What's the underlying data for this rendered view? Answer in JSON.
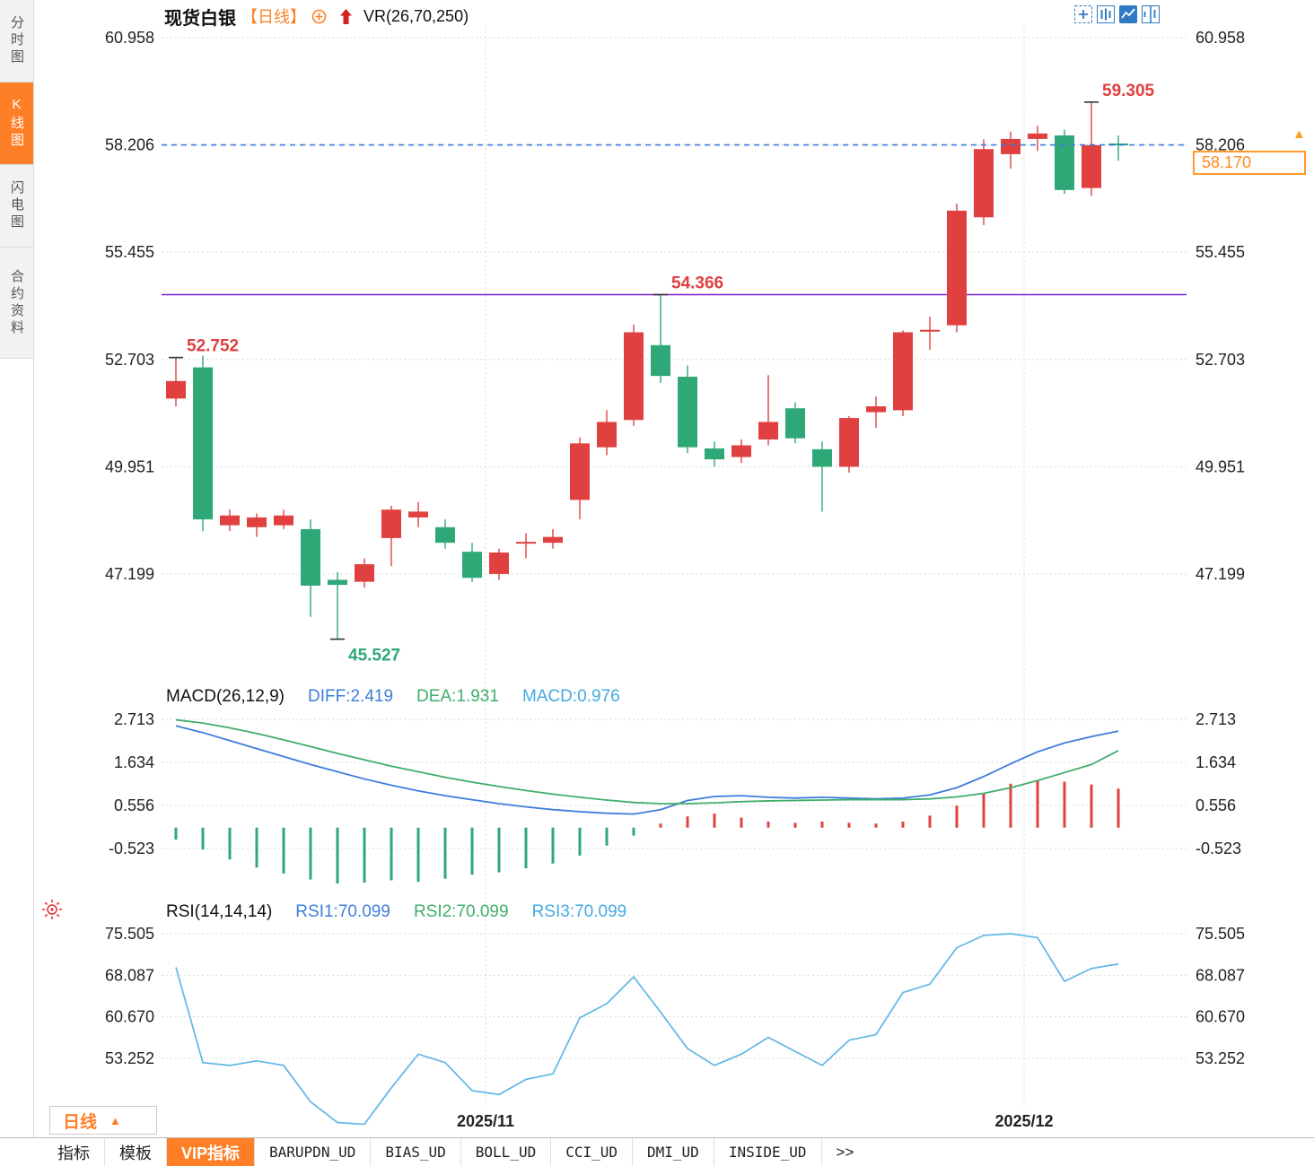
{
  "header": {
    "title": "现货白银",
    "period": "【日线】",
    "vr": "VR(26,70,250)"
  },
  "icons": {
    "add_overlay": "circle-plus-icon",
    "trend": "red-up-arrow-icon",
    "toolbar": [
      "pan-move-icon",
      "kline-view-icon",
      "chart-view-active-icon",
      "split-panes-icon"
    ],
    "settings": "sun-icon",
    "period_caret": "triangle-up-icon",
    "price_marker": "triangle-up-icon"
  },
  "sidebar": {
    "items": [
      {
        "label": "分时图",
        "active": false
      },
      {
        "label": "K线图",
        "active": true
      },
      {
        "label": "闪电图",
        "active": false
      },
      {
        "label": "合约资料",
        "active": false
      }
    ]
  },
  "price_tag": {
    "value": "58.170"
  },
  "macd_header": {
    "name": "MACD(26,12,9)",
    "diff": "DIFF:2.419",
    "dea": "DEA:1.931",
    "macd": "MACD:0.976"
  },
  "rsi_header": {
    "name": "RSI(14,14,14)",
    "rsi1": "RSI1:70.099",
    "rsi2": "RSI2:70.099",
    "rsi3": "RSI3:70.099"
  },
  "bottom": {
    "period_label": "日线"
  },
  "tabs": {
    "items": [
      "指标",
      "模板",
      "VIP指标",
      "BARUPDN_UD",
      "BIAS_UD",
      "BOLL_UD",
      "CCI_UD",
      "DMI_UD",
      "INSIDE_UD",
      ">>"
    ],
    "active": "VIP指标"
  },
  "chart_data": {
    "type": "candlestick",
    "title": "现货白银 日线",
    "x_axis": {
      "labels": [
        "2025/11",
        "2025/12"
      ],
      "label_positions": [
        11.5,
        31.5
      ]
    },
    "colors": {
      "up": "#e04040",
      "down": "#2fa878",
      "diff": "#3d7edb",
      "dea": "#3fae6a",
      "rsi": "#5fb6e5",
      "grid": "#d9d9d9",
      "dashed": "#3d7be0",
      "level": "#7b1fd2",
      "accent_orange": "#ff7f27"
    },
    "panels": [
      {
        "type": "candlestick",
        "y_ticks": [
          60.958,
          58.206,
          55.455,
          52.703,
          49.951,
          47.199
        ],
        "current_price": 58.17,
        "current_price_line": 58.206,
        "levels": [
          {
            "price": 54.366,
            "color": "#7b1fd2",
            "style": "solid"
          }
        ],
        "annotations": [
          {
            "index": 0,
            "price": 52.752,
            "label": "52.752",
            "color": "#e04040",
            "placement": "above"
          },
          {
            "index": 6,
            "price": 45.527,
            "label": "45.527",
            "color": "#2fa878",
            "placement": "below"
          },
          {
            "index": 18,
            "price": 54.366,
            "label": "54.366",
            "color": "#e04040",
            "placement": "above"
          },
          {
            "index": 34,
            "price": 59.305,
            "label": "59.305",
            "color": "#e04040",
            "placement": "above"
          }
        ],
        "candles": [
          [
            51.7,
            52.752,
            51.5,
            52.15
          ],
          [
            52.5,
            52.8,
            48.3,
            48.6
          ],
          [
            48.45,
            48.85,
            48.3,
            48.7
          ],
          [
            48.4,
            48.75,
            48.15,
            48.65
          ],
          [
            48.45,
            48.85,
            48.35,
            48.7
          ],
          [
            48.35,
            48.6,
            46.1,
            46.9
          ],
          [
            47.05,
            47.25,
            45.527,
            46.92
          ],
          [
            47.0,
            47.6,
            46.85,
            47.45
          ],
          [
            48.12,
            48.95,
            47.4,
            48.85
          ],
          [
            48.65,
            49.05,
            48.4,
            48.8
          ],
          [
            48.4,
            48.6,
            47.85,
            48.0
          ],
          [
            47.77,
            48.0,
            47.0,
            47.1
          ],
          [
            47.2,
            47.85,
            47.05,
            47.75
          ],
          [
            47.95,
            48.25,
            47.6,
            48.0
          ],
          [
            48.0,
            48.35,
            47.85,
            48.15
          ],
          [
            49.1,
            50.7,
            48.6,
            50.55
          ],
          [
            50.45,
            51.4,
            50.25,
            51.1
          ],
          [
            51.15,
            53.6,
            51.0,
            53.4
          ],
          [
            53.07,
            54.366,
            52.1,
            52.28
          ],
          [
            52.26,
            52.55,
            50.3,
            50.45
          ],
          [
            50.42,
            50.6,
            49.95,
            50.14
          ],
          [
            50.2,
            50.65,
            50.05,
            50.5
          ],
          [
            50.65,
            52.3,
            50.5,
            51.1
          ],
          [
            51.45,
            51.6,
            50.55,
            50.68
          ],
          [
            50.4,
            50.6,
            48.8,
            49.95
          ],
          [
            49.95,
            51.25,
            49.8,
            51.2
          ],
          [
            51.35,
            51.75,
            50.95,
            51.5
          ],
          [
            51.4,
            53.45,
            51.25,
            53.4
          ],
          [
            53.4,
            53.8,
            52.95,
            53.44
          ],
          [
            53.58,
            56.7,
            53.4,
            56.52
          ],
          [
            56.35,
            58.35,
            56.15,
            58.1
          ],
          [
            57.97,
            58.55,
            57.6,
            58.36
          ],
          [
            58.36,
            58.7,
            58.05,
            58.5
          ],
          [
            58.45,
            58.6,
            56.95,
            57.05
          ],
          [
            57.1,
            59.305,
            56.9,
            58.2
          ],
          [
            58.22,
            58.45,
            57.8,
            58.17
          ]
        ]
      },
      {
        "type": "macd",
        "y_ticks": [
          2.713,
          1.634,
          0.556,
          -0.523
        ],
        "diff": [
          2.55,
          2.38,
          2.18,
          1.98,
          1.78,
          1.58,
          1.4,
          1.22,
          1.06,
          0.92,
          0.8,
          0.7,
          0.6,
          0.52,
          0.45,
          0.4,
          0.36,
          0.34,
          0.45,
          0.68,
          0.78,
          0.8,
          0.76,
          0.74,
          0.76,
          0.74,
          0.72,
          0.74,
          0.82,
          1.0,
          1.28,
          1.6,
          1.9,
          2.12,
          2.28,
          2.419
        ],
        "dea": [
          2.7,
          2.62,
          2.5,
          2.36,
          2.2,
          2.03,
          1.86,
          1.7,
          1.54,
          1.4,
          1.26,
          1.14,
          1.03,
          0.93,
          0.84,
          0.76,
          0.69,
          0.63,
          0.6,
          0.6,
          0.62,
          0.65,
          0.67,
          0.68,
          0.69,
          0.7,
          0.7,
          0.7,
          0.72,
          0.77,
          0.86,
          1.0,
          1.18,
          1.38,
          1.58,
          1.931
        ],
        "hist": [
          -0.3,
          -0.55,
          -0.8,
          -1.0,
          -1.15,
          -1.3,
          -1.4,
          -1.38,
          -1.32,
          -1.36,
          -1.28,
          -1.18,
          -1.12,
          -1.02,
          -0.9,
          -0.7,
          -0.45,
          -0.2,
          0.1,
          0.28,
          0.35,
          0.25,
          0.15,
          0.12,
          0.15,
          0.12,
          0.1,
          0.15,
          0.3,
          0.55,
          0.85,
          1.1,
          1.18,
          1.15,
          1.08,
          0.976
        ]
      },
      {
        "type": "line",
        "name": "RSI",
        "y_ticks": [
          75.505,
          68.087,
          60.67,
          53.252
        ],
        "values": [
          69.5,
          52.5,
          52.0,
          52.8,
          52.0,
          45.5,
          41.8,
          41.5,
          48.0,
          54.0,
          52.5,
          47.5,
          46.8,
          49.5,
          50.5,
          60.5,
          63.0,
          67.8,
          61.5,
          55.0,
          52.0,
          54.0,
          57.0,
          54.5,
          52.0,
          56.5,
          57.5,
          65.0,
          66.5,
          73.0,
          75.2,
          75.5,
          74.8,
          67.0,
          69.3,
          70.099
        ]
      }
    ]
  }
}
